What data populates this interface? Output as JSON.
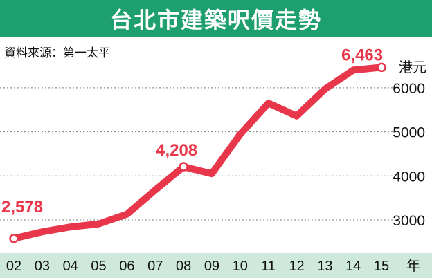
{
  "title": "台北市建築呎價走勢",
  "source": "資料來源：第一太平",
  "colors": {
    "title_bg": "#1e9f6f",
    "line": "#e8364a",
    "xaxis_bg": "#cfe8dc",
    "grid": "#7a7a7a"
  },
  "chart_data": {
    "type": "line",
    "title": "台北市建築呎價走勢",
    "y_unit": "港元",
    "x_unit": "年",
    "categories": [
      "02",
      "03",
      "04",
      "05",
      "06",
      "07",
      "08",
      "09",
      "10",
      "11",
      "12",
      "13",
      "14",
      "15"
    ],
    "series": [
      {
        "values": [
          2578,
          2730,
          2840,
          2910,
          3130,
          3680,
          4208,
          4050,
          4940,
          5650,
          5360,
          5970,
          6400,
          6463
        ]
      }
    ],
    "ylim": [
      2300,
      6650
    ],
    "yticks": [
      3000,
      4000,
      5000,
      6000
    ],
    "grid": true,
    "data_labels": [
      {
        "category": "02",
        "text": "2,578"
      },
      {
        "category": "08",
        "text": "4,208"
      },
      {
        "category": "15",
        "text": "6,463"
      }
    ]
  }
}
